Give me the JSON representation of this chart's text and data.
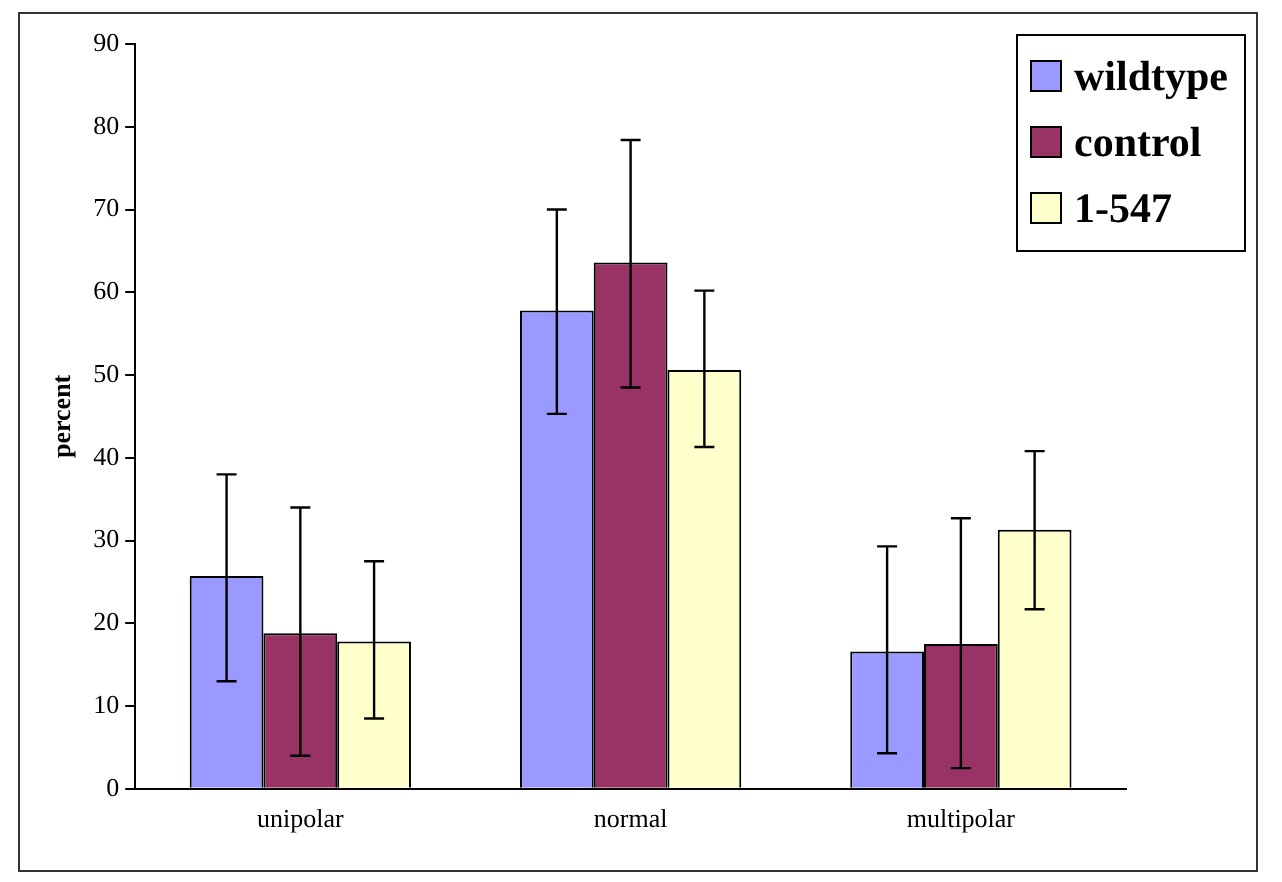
{
  "chart_data": {
    "type": "bar",
    "ylabel": "percent",
    "categories": [
      "unipolar",
      "normal",
      "multipolar"
    ],
    "series": [
      {
        "name": "wildtype",
        "color": "#9999ff",
        "values": [
          25.7,
          57.8,
          16.6
        ],
        "errors": [
          [
            13,
            38
          ],
          [
            45.3,
            70
          ],
          [
            4.3,
            29.3
          ]
        ]
      },
      {
        "name": "control",
        "color": "#993366",
        "values": [
          18.8,
          63.6,
          17.5
        ],
        "errors": [
          [
            4,
            34
          ],
          [
            48.5,
            78.4
          ],
          [
            2.5,
            32.7
          ]
        ]
      },
      {
        "name": "1-547",
        "color": "#ffffcc",
        "values": [
          17.8,
          50.6,
          31.3
        ],
        "errors": [
          [
            8.5,
            27.5
          ],
          [
            41.3,
            60.2
          ],
          [
            21.7,
            40.8
          ]
        ]
      }
    ],
    "ylim": [
      0,
      90
    ],
    "yticks": [
      0,
      10,
      20,
      30,
      40,
      50,
      60,
      70,
      80,
      90
    ],
    "grid": false,
    "legend": "top right"
  }
}
